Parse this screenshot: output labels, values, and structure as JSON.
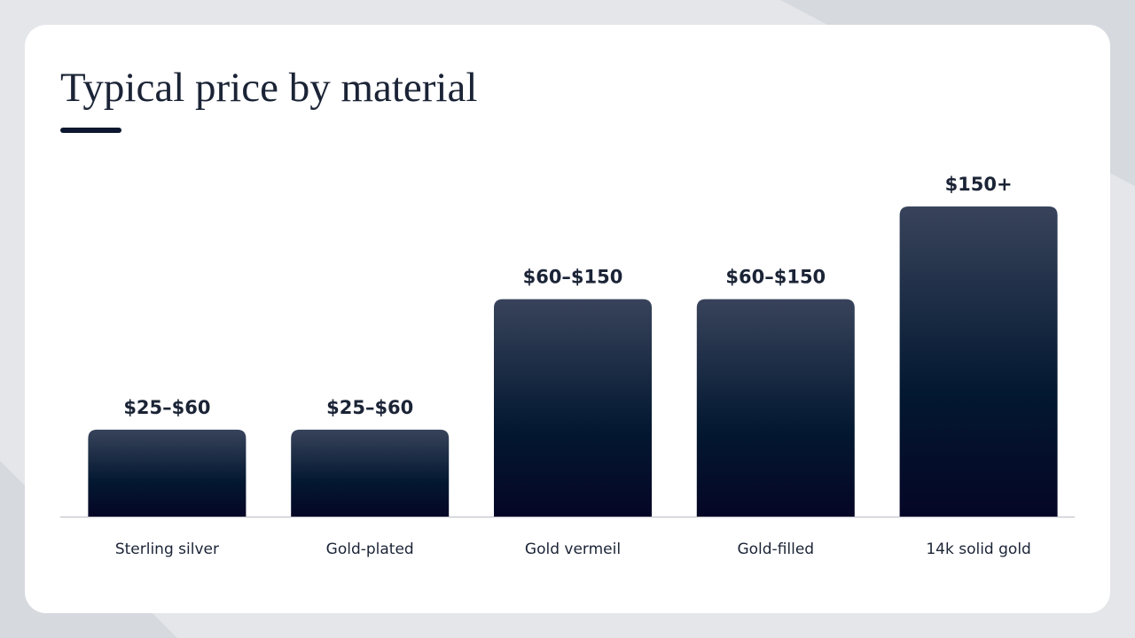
{
  "chart_data": {
    "type": "bar",
    "title": "Typical price by material",
    "categories": [
      "Sterling silver",
      "Gold-plated",
      "Gold vermeil",
      "Gold-filled",
      "14k solid gold"
    ],
    "values": [
      60,
      60,
      150,
      150,
      214
    ],
    "value_labels": [
      "$25–$60",
      "$25–$60",
      "$60–$150",
      "$60–$150",
      "$150+"
    ]
  }
}
